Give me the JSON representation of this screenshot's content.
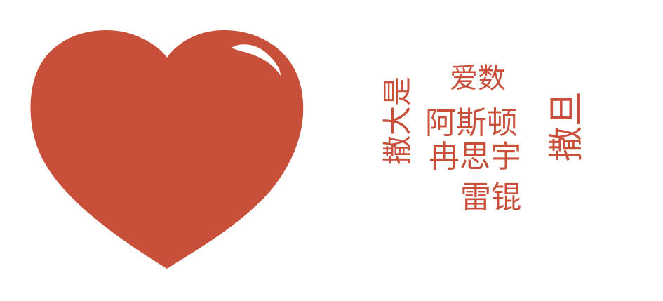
{
  "colors": {
    "heart": "#c8503b",
    "highlight": "#ffffff",
    "text": "#c8503b"
  },
  "heart": {
    "icon": "heart-icon"
  },
  "words": {
    "aishu": "爱数",
    "asidun": "阿斯顿",
    "ransiyu": "冉思宇",
    "leigun": "雷锟",
    "sadashi": "撒大是",
    "sari": "撒旦"
  }
}
